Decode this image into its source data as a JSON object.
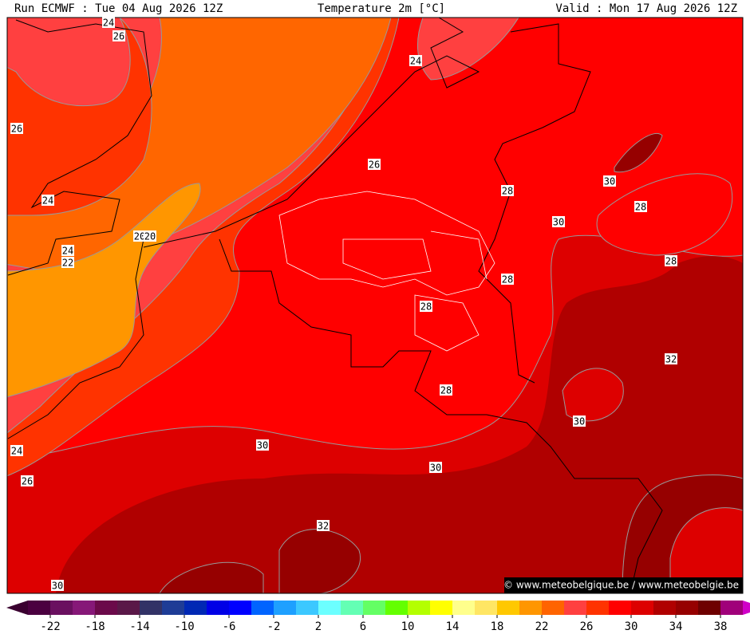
{
  "header": {
    "left": "Run ECMWF : Tue 04 Aug 2026 12Z",
    "center": "Temperature 2m [°C]",
    "right": "Valid : Mon 17 Aug 2026 12Z"
  },
  "contour_labels": [
    24,
    26,
    24,
    26,
    26,
    24,
    28,
    30,
    28,
    30,
    20,
    20,
    24,
    22,
    28,
    28,
    28,
    32,
    28,
    30,
    30,
    24,
    30,
    26,
    32,
    30
  ],
  "watermark": "© www.meteobelgique.be / www.meteobelgie.be",
  "colorbar": {
    "ticks": [
      -22,
      -18,
      -14,
      -10,
      -6,
      -2,
      2,
      6,
      10,
      14,
      18,
      22,
      26,
      30,
      34,
      38
    ],
    "start": -24,
    "step": 2,
    "colors": [
      "#4b0040",
      "#6a1060",
      "#861878",
      "#6b0a4a",
      "#5a1848",
      "#323266",
      "#1e3c96",
      "#0028b4",
      "#0000e6",
      "#0000ff",
      "#0064ff",
      "#1ea0ff",
      "#3cc8ff",
      "#6cffff",
      "#64ffb4",
      "#64ff64",
      "#64ff00",
      "#b4ff00",
      "#ffff00",
      "#ffff8c",
      "#ffe664",
      "#ffc800",
      "#ff9600",
      "#ff6400",
      "#ff4040",
      "#ff3300",
      "#ff0000",
      "#dd0000",
      "#b00000",
      "#960000",
      "#6e0000",
      "#a0007a"
    ],
    "low_color": "#3a0030",
    "high_color": "#d000c8"
  }
}
